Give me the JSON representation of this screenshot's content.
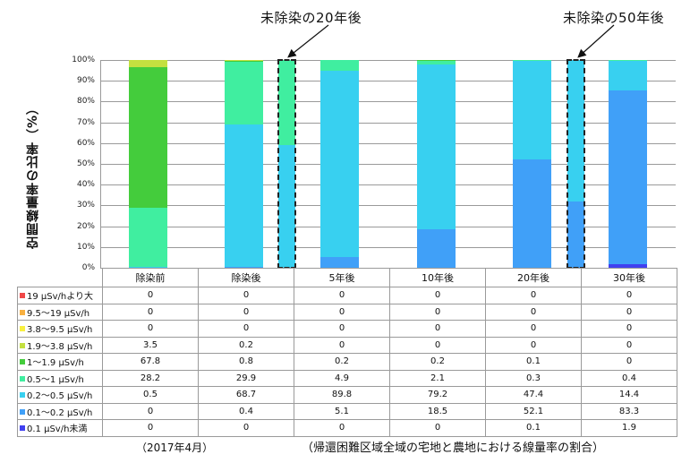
{
  "chart_data": {
    "type": "bar",
    "stacked": true,
    "percent": true,
    "title": "",
    "xlabel": "",
    "ylabel": "空間線量率の比率（%）",
    "ylim": [
      0,
      100
    ],
    "yticks": [
      "0%",
      "10%",
      "20%",
      "30%",
      "40%",
      "50%",
      "60%",
      "70%",
      "80%",
      "90%",
      "100%"
    ],
    "grid": true,
    "legend_position": "table-left",
    "categories": [
      "除染前",
      "除染後",
      "5年後",
      "10年後",
      "20年後",
      "30年後"
    ],
    "series": [
      {
        "name": "19 μSv/hより大",
        "color": "#f04848",
        "values": [
          0,
          0,
          0,
          0,
          0,
          0
        ]
      },
      {
        "name": "9.5～19 μSv/h",
        "color": "#f8b040",
        "values": [
          0,
          0,
          0,
          0,
          0,
          0
        ]
      },
      {
        "name": "3.8～9.5 μSv/h",
        "color": "#f8f040",
        "values": [
          0,
          0,
          0,
          0,
          0,
          0
        ]
      },
      {
        "name": "1.9～3.8 μSv/h",
        "color": "#c4e040",
        "values": [
          3.5,
          0.2,
          0,
          0,
          0,
          0
        ]
      },
      {
        "name": "1～1.9 μSv/h",
        "color": "#44cc3c",
        "values": [
          67.8,
          0.8,
          0.2,
          0.2,
          0.1,
          0
        ]
      },
      {
        "name": "0.5～1 μSv/h",
        "color": "#40eea0",
        "values": [
          28.2,
          29.9,
          4.9,
          2.1,
          0.3,
          0.4
        ]
      },
      {
        "name": "0.2～0.5 μSv/h",
        "color": "#38d0f0",
        "values": [
          0.5,
          68.7,
          89.8,
          79.2,
          47.4,
          14.4
        ]
      },
      {
        "name": "0.1～0.2 μSv/h",
        "color": "#40a0f8",
        "values": [
          0,
          0.4,
          5.1,
          18.5,
          52.1,
          83.3
        ]
      },
      {
        "name": "0.1 μSv/h未満",
        "color": "#4040f0",
        "values": [
          0,
          0,
          0,
          0,
          0.1,
          1.9
        ]
      }
    ],
    "annotations": [
      {
        "label": "未除染の20年後",
        "position_after": "除染後",
        "segments": [
          {
            "series": "0.2～0.5 μSv/h",
            "approx_value": 59
          },
          {
            "series": "0.5～1 μSv/h",
            "approx_value": 41
          }
        ]
      },
      {
        "label": "未除染の50年後",
        "position_after": "20年後",
        "segments": [
          {
            "series": "0.1～0.2 μSv/h",
            "approx_value": 32
          },
          {
            "series": "0.2～0.5 μSv/h",
            "approx_value": 68
          }
        ]
      }
    ],
    "footnotes": [
      "（2017年4月）",
      "（帰還困難区域全域の宅地と農地における線量率の割合）"
    ]
  },
  "callouts": {
    "left": "未除染の20年後",
    "right": "未除染の50年後"
  },
  "footer": {
    "date": "（2017年4月）",
    "caption": "（帰還困難区域全域の宅地と農地における線量率の割合）"
  }
}
